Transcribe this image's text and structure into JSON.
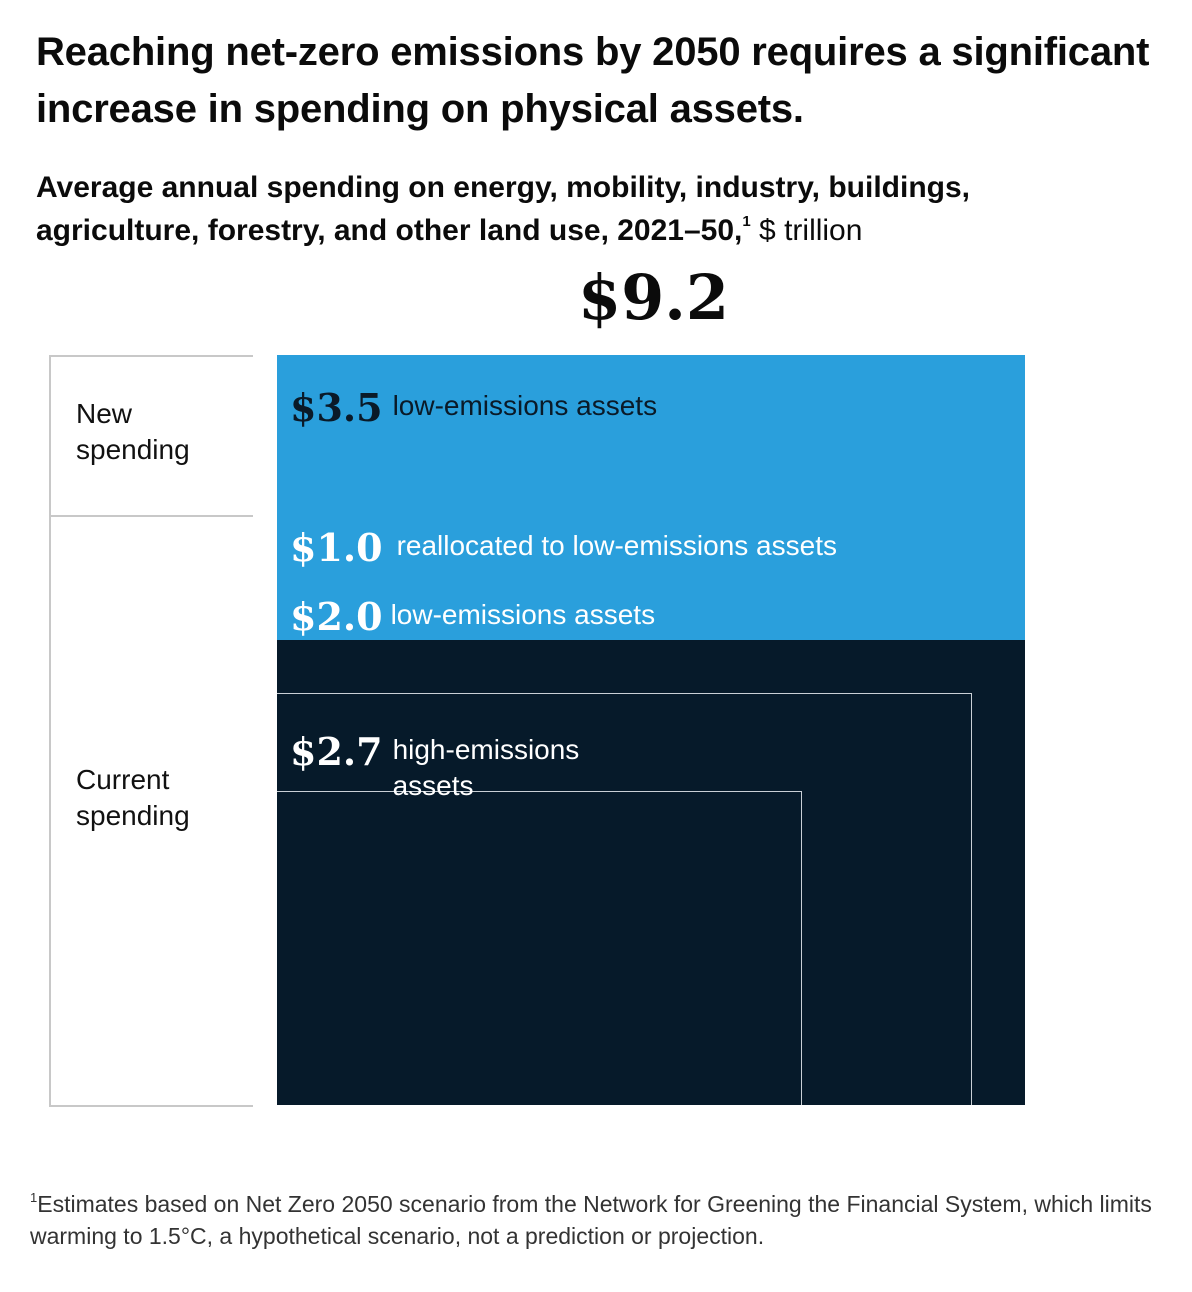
{
  "title": "Reaching net-zero emissions by 2050 requires a significant increase in spending on physical assets.",
  "subtitle": {
    "bold_text": "Average annual spending on energy, mobility, industry, buildings, agriculture, forestry, and other land use, 2021–50,",
    "footnote_mark": "1",
    "unit": " $ trillion"
  },
  "chart_data": {
    "type": "nested-area",
    "title": "Average annual spending on energy, mobility, industry, buildings, agriculture, forestry, and other land use, 2021–50",
    "unit": "$ trillion",
    "total": 9.2,
    "total_label": "$9.2",
    "groups": [
      {
        "name": "New spending",
        "total": 3.5
      },
      {
        "name": "Current spending",
        "total": 5.7
      }
    ],
    "segments": [
      {
        "group": "New spending",
        "value": 3.5,
        "value_label": "$3.5",
        "label": "low-emissions assets",
        "color": "#2a9fdc"
      },
      {
        "group": "Current spending",
        "value": 1.0,
        "value_label": "$1.0",
        "label": "reallocated to low-emissions assets",
        "color": "#061a2a"
      },
      {
        "group": "Current spending",
        "value": 2.0,
        "value_label": "$2.0",
        "label": "low-emissions assets",
        "color": "#061a2a"
      },
      {
        "group": "Current spending",
        "value": 2.7,
        "value_label": "$2.7",
        "label": "high-emissions assets",
        "color": "#061a2a"
      }
    ]
  },
  "side_labels": {
    "new": "New spending",
    "current": "Current spending"
  },
  "footnote": {
    "mark": "1",
    "text": "Estimates based on Net Zero 2050 scenario from the Network for Greening the Financial System, which limits warming to 1.5°C, a hypothetical scenario, not a prediction or projection."
  }
}
